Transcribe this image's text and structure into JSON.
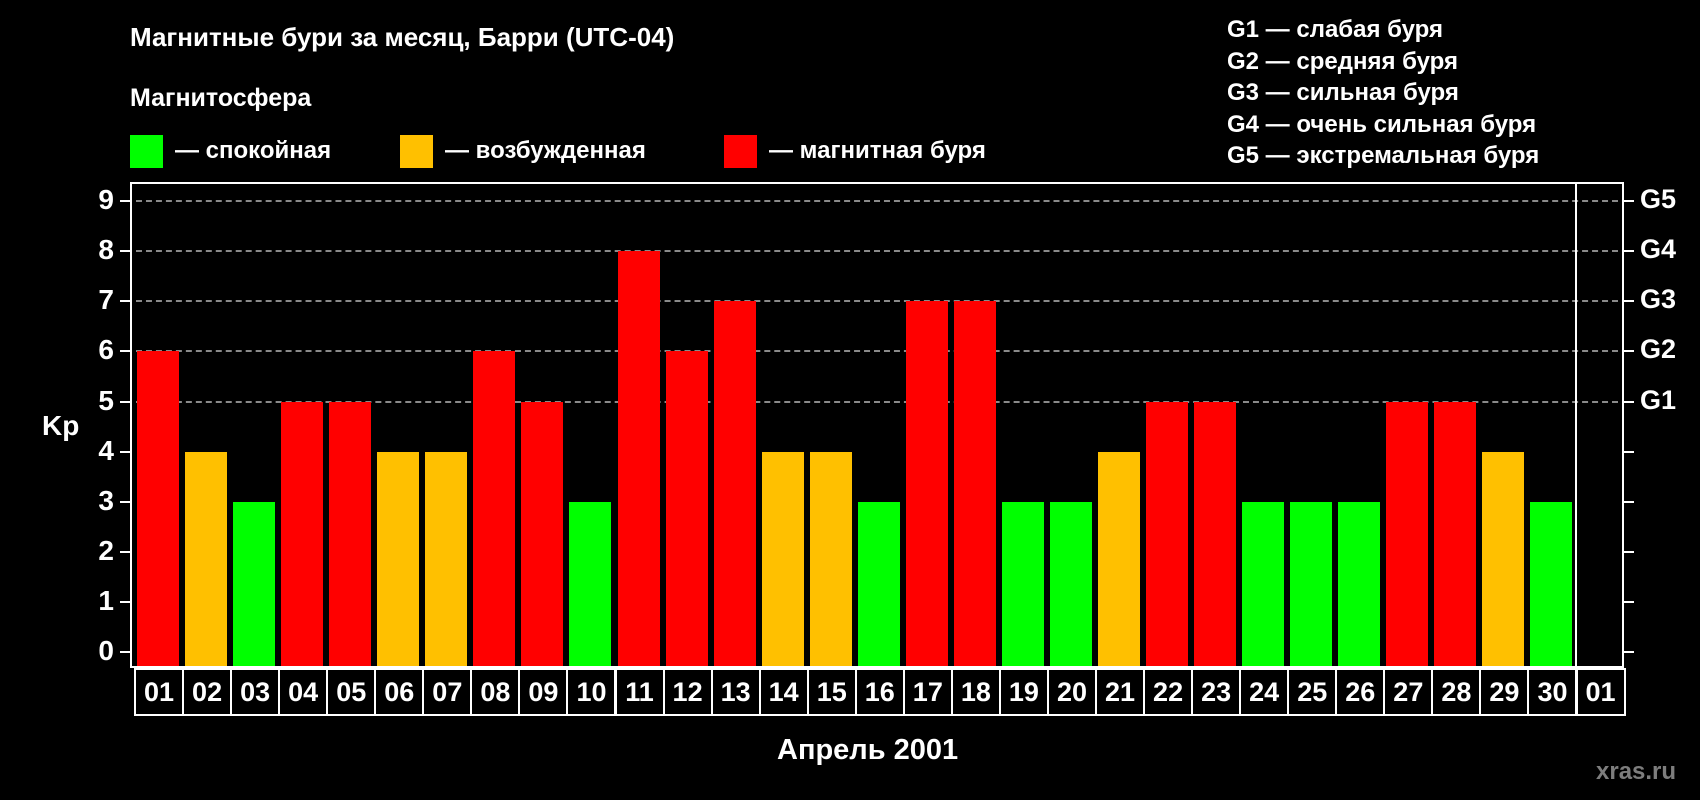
{
  "header": {
    "title": "Магнитные бури за месяц, Барри (UTC-04)",
    "subtitle": "Магнитосфера"
  },
  "legend": {
    "items": [
      {
        "label": "— спокойная",
        "color": "#00ff00"
      },
      {
        "label": "— возбужденная",
        "color": "#ffc000"
      },
      {
        "label": "— магнитная буря",
        "color": "#ff0000"
      }
    ]
  },
  "g_legend": [
    "G1 — слабая буря",
    "G2 — средняя буря",
    "G3 — сильная буря",
    "G4 — очень сильная буря",
    "G5 — экстремальная буря"
  ],
  "watermark": "xras.ru",
  "colors": {
    "quiet": "#00ff00",
    "unsettled": "#ffc000",
    "storm": "#ff0000",
    "grid": "#8a8a8a",
    "background": "#000000"
  },
  "chart_data": {
    "type": "bar",
    "title": "Магнитные бури за месяц, Барри (UTC-04)",
    "subtitle": "Магнитосфера",
    "xlabel": "Апрель 2001",
    "ylabel": "Kp",
    "ylim": [
      0,
      9
    ],
    "yticks": [
      0,
      1,
      2,
      3,
      4,
      5,
      6,
      7,
      8,
      9
    ],
    "right_axis": {
      "labels": [
        "G1",
        "G2",
        "G3",
        "G4",
        "G5"
      ],
      "positions": [
        5,
        6,
        7,
        8,
        9
      ]
    },
    "grid": {
      "dashed_horizontal_at": [
        5,
        6,
        7,
        8,
        9
      ]
    },
    "categories": [
      "01",
      "02",
      "03",
      "04",
      "05",
      "06",
      "07",
      "08",
      "09",
      "10",
      "11",
      "12",
      "13",
      "14",
      "15",
      "16",
      "17",
      "18",
      "19",
      "20",
      "21",
      "22",
      "23",
      "24",
      "25",
      "26",
      "27",
      "28",
      "29",
      "30",
      "01"
    ],
    "values": [
      6,
      4,
      3,
      5,
      5,
      4,
      4,
      6,
      5,
      3,
      8,
      6,
      7,
      4,
      4,
      3,
      7,
      7,
      3,
      3,
      4,
      5,
      5,
      3,
      3,
      3,
      5,
      5,
      4,
      3,
      null
    ],
    "levels": [
      "storm",
      "unsettled",
      "quiet",
      "storm",
      "storm",
      "unsettled",
      "unsettled",
      "storm",
      "storm",
      "quiet",
      "storm",
      "storm",
      "storm",
      "unsettled",
      "unsettled",
      "quiet",
      "storm",
      "storm",
      "quiet",
      "quiet",
      "unsettled",
      "storm",
      "storm",
      "quiet",
      "quiet",
      "quiet",
      "storm",
      "storm",
      "unsettled",
      "quiet",
      null
    ],
    "legend": [
      {
        "label": "спокойная",
        "color": "#00ff00"
      },
      {
        "label": "возбужденная",
        "color": "#ffc000"
      },
      {
        "label": "магнитная буря",
        "color": "#ff0000"
      }
    ],
    "legend_position": "top"
  }
}
